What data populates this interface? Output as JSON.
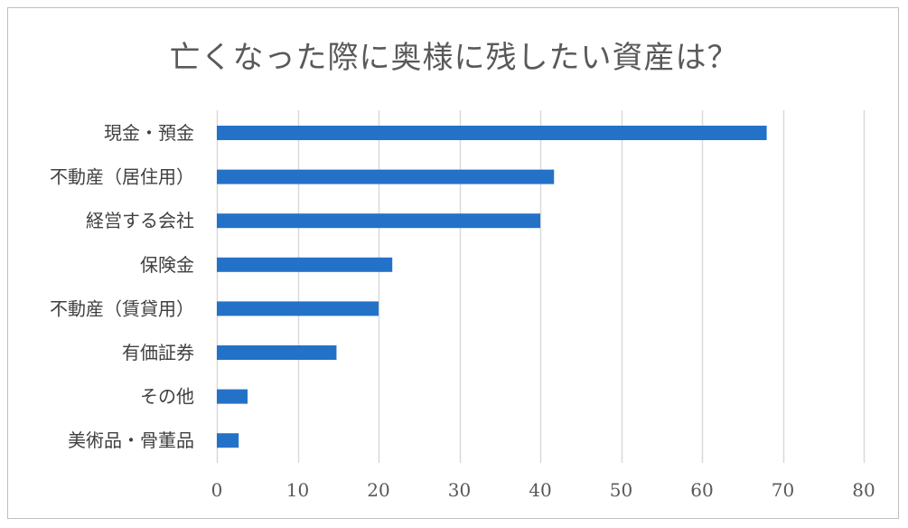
{
  "chart_data": {
    "type": "bar",
    "orientation": "horizontal",
    "title": "亡くなった際に奥様に残したい資産は？",
    "categories": [
      "現金・預金",
      "不動産（居住用）",
      "経営する会社",
      "保険金",
      "不動産（賃貸用）",
      "有価証券",
      "その他",
      "美術品・骨董品"
    ],
    "values": [
      68,
      41.7,
      40,
      21.7,
      20,
      14.8,
      3.8,
      2.7
    ],
    "xlim": [
      0,
      80
    ],
    "xticks": [
      0,
      10,
      20,
      30,
      40,
      50,
      60,
      70,
      80
    ],
    "grid": true,
    "legend": "none",
    "bar_color": "#2472C8",
    "grid_color": "#d9d9d9"
  }
}
